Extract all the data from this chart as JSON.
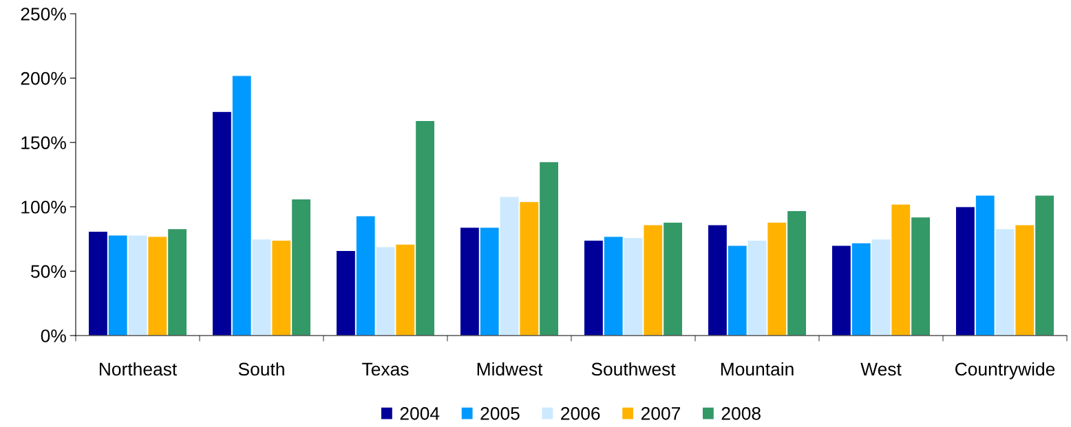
{
  "chart_data": {
    "type": "bar",
    "categories": [
      "Northeast",
      "South",
      "Texas",
      "Midwest",
      "Southwest",
      "Mountain",
      "West",
      "Countrywide"
    ],
    "series": [
      {
        "name": "2004",
        "color": "#000099",
        "values": [
          81,
          174,
          66,
          84,
          74,
          86,
          70,
          100
        ]
      },
      {
        "name": "2005",
        "color": "#0099ff",
        "values": [
          78,
          202,
          93,
          84,
          77,
          70,
          72,
          109
        ]
      },
      {
        "name": "2006",
        "color": "#cce9ff",
        "values": [
          78,
          75,
          69,
          108,
          76,
          74,
          75,
          83
        ]
      },
      {
        "name": "2007",
        "color": "#ffb300",
        "values": [
          77,
          74,
          71,
          104,
          86,
          88,
          102,
          86
        ]
      },
      {
        "name": "2008",
        "color": "#339966",
        "values": [
          83,
          106,
          167,
          135,
          88,
          97,
          92,
          109
        ]
      }
    ],
    "ylim": [
      0,
      250
    ],
    "yticks": [
      {
        "value": 0,
        "label": "0%"
      },
      {
        "value": 50,
        "label": "50%"
      },
      {
        "value": 100,
        "label": "100%"
      },
      {
        "value": 150,
        "label": "150%"
      },
      {
        "value": 200,
        "label": "200%"
      },
      {
        "value": 250,
        "label": "250%"
      }
    ],
    "grid": false,
    "legend": "bottom"
  }
}
